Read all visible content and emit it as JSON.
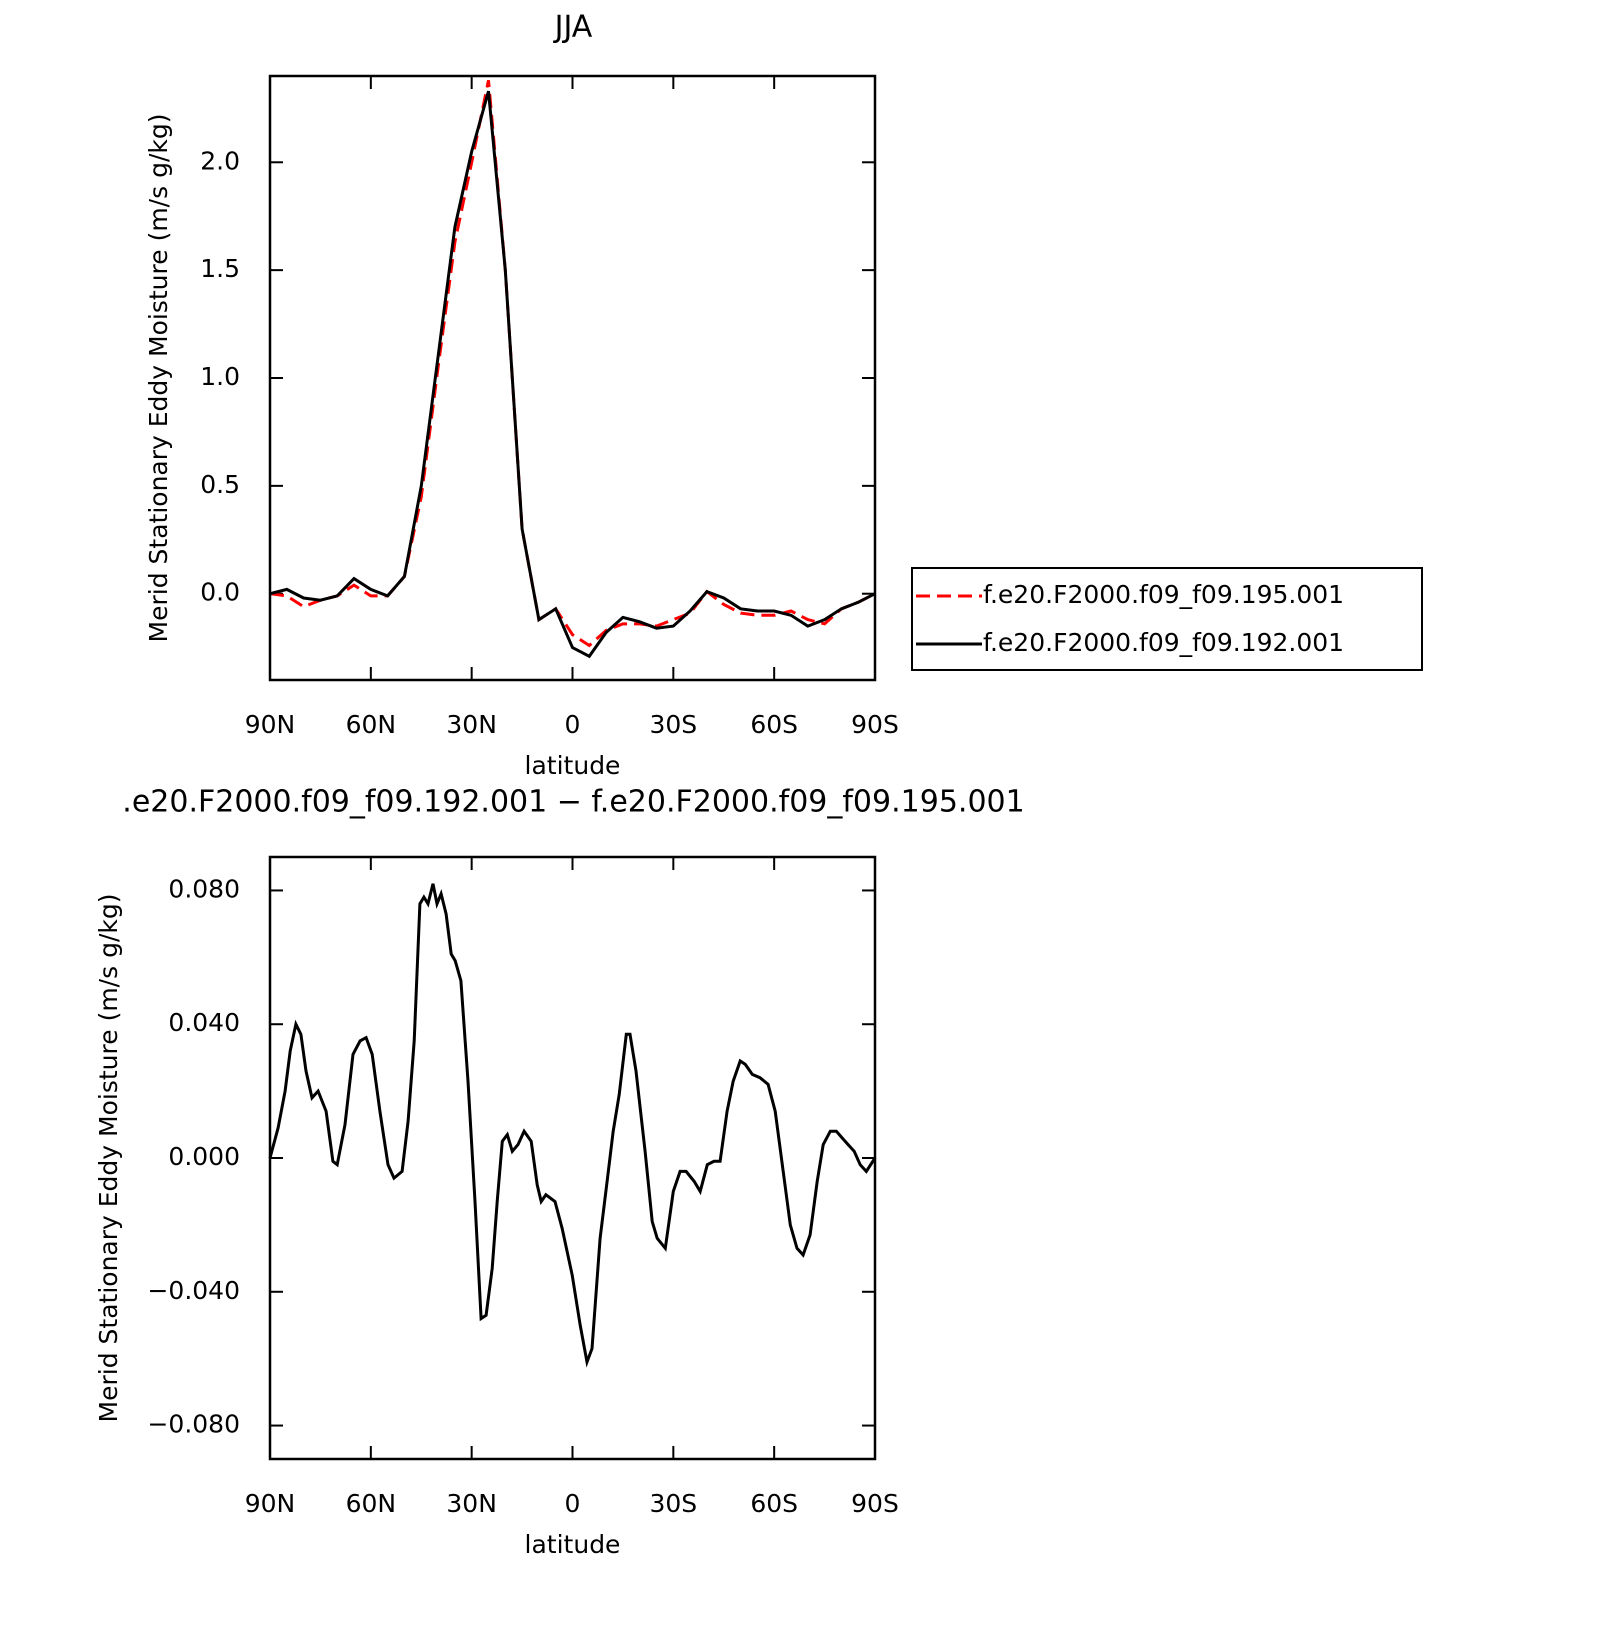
{
  "chart_data": [
    {
      "type": "line",
      "title": "JJA",
      "xlabel": "latitude",
      "ylabel": "Merid Stationary Eddy Moisture (m/s g/kg)",
      "x": [
        90,
        85,
        80,
        75,
        70,
        65,
        60,
        55,
        50,
        45,
        40,
        35,
        30,
        25,
        20,
        15,
        10,
        5,
        0,
        -5,
        -10,
        -15,
        -20,
        -25,
        -30,
        -35,
        -40,
        -45,
        -50,
        -55,
        -60,
        -65,
        -70,
        -75,
        -80,
        -85,
        -90
      ],
      "series": [
        {
          "name": "f.e20.F2000.f09_f09.195.001",
          "color": "#ff0000",
          "line_style": "dashed",
          "values": [
            0,
            -0.01,
            -0.06,
            -0.03,
            -0.01,
            0.04,
            -0.01,
            -0.01,
            0.08,
            0.45,
            1.05,
            1.63,
            2.0,
            2.38,
            1.5,
            0.3,
            -0.12,
            -0.07,
            -0.19,
            -0.24,
            -0.17,
            -0.14,
            -0.14,
            -0.15,
            -0.12,
            -0.09,
            0.01,
            -0.05,
            -0.09,
            -0.1,
            -0.1,
            -0.08,
            -0.12,
            -0.14,
            -0.07,
            -0.04,
            0
          ]
        },
        {
          "name": "f.e20.F2000.f09_f09.192.001",
          "color": "#000000",
          "line_style": "solid",
          "values": [
            0,
            0.02,
            -0.02,
            -0.03,
            -0.01,
            0.07,
            0.02,
            -0.01,
            0.08,
            0.5,
            1.1,
            1.7,
            2.05,
            2.33,
            1.5,
            0.3,
            -0.12,
            -0.07,
            -0.25,
            -0.29,
            -0.18,
            -0.11,
            -0.13,
            -0.16,
            -0.15,
            -0.08,
            0.01,
            -0.02,
            -0.07,
            -0.08,
            -0.08,
            -0.1,
            -0.15,
            -0.12,
            -0.07,
            -0.04,
            0
          ]
        }
      ],
      "xlim": [
        90,
        -90
      ],
      "xticks": [
        {
          "value": 90,
          "label": "90N"
        },
        {
          "value": 60,
          "label": "60N"
        },
        {
          "value": 30,
          "label": "30N"
        },
        0,
        {
          "value": -30,
          "label": "30S"
        },
        {
          "value": -60,
          "label": "60S"
        },
        {
          "value": -90,
          "label": "90S"
        }
      ],
      "ylim": [
        -0.4,
        2.4
      ],
      "yticks": [
        {
          "value": 0,
          "label": "0.0"
        },
        0.5,
        {
          "value": 1,
          "label": "1.0"
        },
        1.5,
        {
          "value": 2,
          "label": "2.0"
        }
      ],
      "legend": "right"
    },
    {
      "type": "line",
      "title": ".e20.F2000.f09_f09.192.001 − f.e20.F2000.f09_f09.195.001",
      "xlabel": "latitude",
      "ylabel": "Merid Stationary Eddy Moisture (m/s g/kg)",
      "x": [
        90,
        87.6,
        85.5,
        84,
        82.3,
        80.8,
        79.3,
        77.5,
        75.7,
        73.3,
        71.3,
        70,
        67.7,
        65.3,
        63.2,
        61.4,
        59.6,
        57.3,
        54.9,
        53.1,
        50.7,
        48.9,
        47.1,
        45.4,
        44.2,
        43,
        41.5,
        40.3,
        39.1,
        37.6,
        36.1,
        34.9,
        33.2,
        31.1,
        29,
        27.2,
        25.7,
        23.9,
        22.4,
        20.9,
        19.4,
        17.9,
        16.2,
        14.4,
        12.3,
        10.5,
        9.3,
        7.9,
        5.2,
        3.1,
        0.1,
        -2.3,
        -4.3,
        -5.8,
        -8.2,
        -10.3,
        -12.1,
        -13.9,
        -16,
        -17.1,
        -18.9,
        -21.6,
        -23.7,
        -25.2,
        -27.6,
        -30,
        -32,
        -33.8,
        -36.2,
        -38,
        -40.1,
        -42.1,
        -43.9,
        -46,
        -47.8,
        -49.9,
        -51.4,
        -53.5,
        -55.8,
        -58.2,
        -60.3,
        -62.7,
        -64.8,
        -66.8,
        -68.6,
        -70.7,
        -72.8,
        -74.6,
        -76.7,
        -78.5,
        -80.2,
        -82,
        -83.8,
        -85.6,
        -87.4,
        -90
      ],
      "series": [
        {
          "name": null,
          "color": "#000000",
          "line_style": "solid",
          "values": [
            0,
            0.009,
            0.02,
            0.032,
            0.04,
            0.037,
            0.026,
            0.018,
            0.02,
            0.014,
            -0.001,
            -0.002,
            0.01,
            0.031,
            0.035,
            0.036,
            0.031,
            0.014,
            -0.002,
            -0.006,
            -0.004,
            0.011,
            0.035,
            0.076,
            0.078,
            0.076,
            0.082,
            0.076,
            0.079,
            0.073,
            0.061,
            0.059,
            0.053,
            0.023,
            -0.013,
            -0.048,
            -0.047,
            -0.033,
            -0.013,
            0.005,
            0.007,
            0.002,
            0.004,
            0.008,
            0.005,
            -0.008,
            -0.013,
            -0.011,
            -0.013,
            -0.021,
            -0.035,
            -0.05,
            -0.061,
            -0.057,
            -0.024,
            -0.007,
            0.008,
            0.019,
            0.037,
            0.037,
            0.026,
            0.002,
            -0.019,
            -0.024,
            -0.027,
            -0.01,
            -0.004,
            -0.004,
            -0.007,
            -0.01,
            -0.002,
            -0.001,
            -0.001,
            0.014,
            0.023,
            0.029,
            0.028,
            0.025,
            0.024,
            0.022,
            0.014,
            -0.004,
            -0.02,
            -0.027,
            -0.029,
            -0.023,
            -0.007,
            0.004,
            0.008,
            0.008,
            0.006,
            0.004,
            0.002,
            -0.002,
            -0.004,
            0
          ]
        }
      ],
      "xlim": [
        90,
        -90
      ],
      "xticks": [
        {
          "value": 90,
          "label": "90N"
        },
        {
          "value": 60,
          "label": "60N"
        },
        {
          "value": 30,
          "label": "30N"
        },
        0,
        {
          "value": -30,
          "label": "30S"
        },
        {
          "value": -60,
          "label": "60S"
        },
        {
          "value": -90,
          "label": "90S"
        }
      ],
      "ylim": [
        -0.09,
        0.09
      ],
      "yticks": [
        {
          "value": -0.08,
          "label": "−0.080"
        },
        {
          "value": -0.04,
          "label": "−0.040"
        },
        {
          "value": 0,
          "label": "0.000"
        },
        {
          "value": 0.04,
          "label": "0.040"
        },
        {
          "value": 0.08,
          "label": "0.080"
        }
      ]
    }
  ]
}
